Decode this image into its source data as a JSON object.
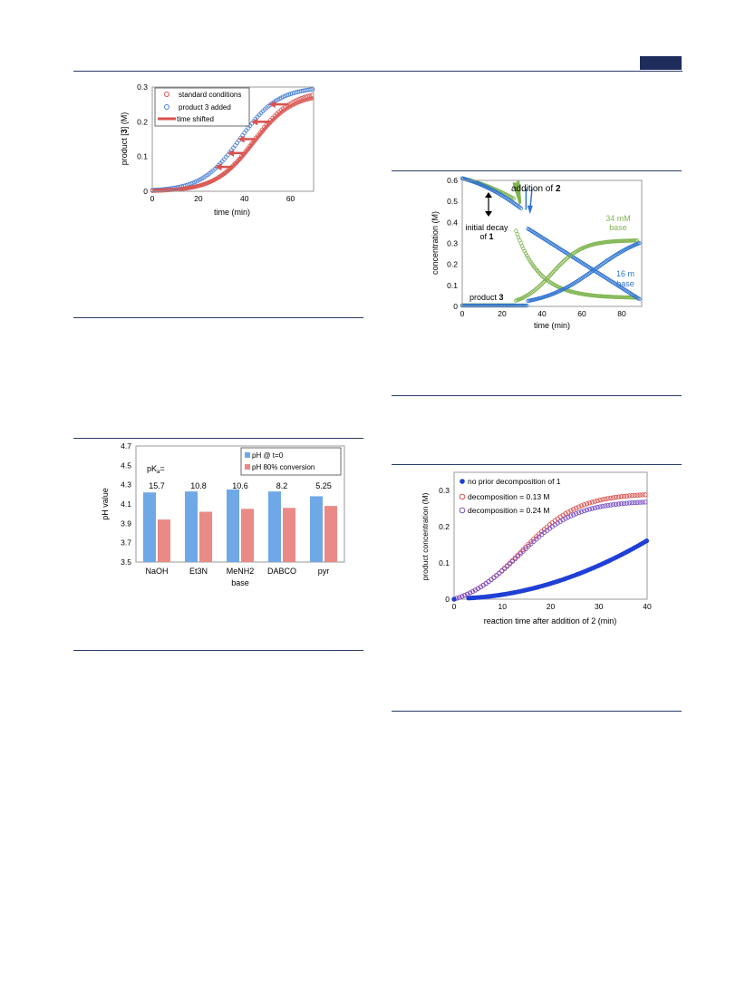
{
  "page": {
    "header_tab_color": "#1f2d5c",
    "rule_color": "#2b3a67"
  },
  "chart_data": [
    {
      "id": "fig_a",
      "type": "scatter",
      "xlabel": "time (min)",
      "ylabel_parts": [
        "product [",
        "3",
        "] (M)"
      ],
      "xlim": [
        0,
        70
      ],
      "ylim": [
        0,
        0.3
      ],
      "xticks": [
        0,
        20,
        40,
        60
      ],
      "yticks": [
        0,
        0.1,
        0.2,
        0.3
      ],
      "legend": [
        "standard conditions",
        "product 3 added",
        "time shifted"
      ],
      "legend_position": "top-left",
      "series": [
        {
          "name": "standard conditions",
          "color": "#d9534f",
          "marker": "open-circle",
          "sigmoid": {
            "max": 0.29,
            "mid": 44,
            "k": 0.12
          },
          "x_range": [
            0,
            70
          ]
        },
        {
          "name": "product 3 added",
          "color": "#4a7fd4",
          "marker": "open-circle",
          "sigmoid": {
            "max": 0.3,
            "mid": 38,
            "k": 0.12
          },
          "x_range": [
            0,
            70
          ]
        },
        {
          "name": "time shifted",
          "color": "#d9534f",
          "marker": "thick-line",
          "sigmoid": {
            "max": 0.28,
            "mid": 44,
            "k": 0.12
          },
          "x_range": [
            0,
            70
          ]
        }
      ],
      "arrows_y": [
        0.07,
        0.11,
        0.15,
        0.2,
        0.25
      ]
    },
    {
      "id": "fig_b",
      "type": "scatter",
      "xlabel": "time (min)",
      "ylabel": "concentration (M)",
      "xlim": [
        0,
        90
      ],
      "ylim": [
        0,
        0.6
      ],
      "xticks": [
        0,
        20,
        40,
        60,
        80
      ],
      "yticks": [
        0,
        0.1,
        0.2,
        0.3,
        0.4,
        0.5,
        0.6
      ],
      "annotations": {
        "addition": [
          "addition of ",
          "2"
        ],
        "initial_decay": [
          "initial decay",
          "of ",
          "1"
        ],
        "base34": [
          "34 mM",
          "base"
        ],
        "base16": [
          "16 m",
          "base"
        ],
        "product": [
          "product ",
          "3"
        ]
      },
      "colors": {
        "green": "#7fb550",
        "blue": "#2f74d0"
      }
    },
    {
      "id": "fig_c",
      "type": "bar",
      "ylabel": "pH value",
      "xlabel": "base",
      "categories": [
        "NaOH",
        "Et3N",
        "MeNH2",
        "DABCO",
        "pyr"
      ],
      "pka_label": "pKa=",
      "pka_values": [
        "15.7",
        "10.8",
        "10.6",
        "8.2",
        "5.25"
      ],
      "series": [
        {
          "name": "pH @ t=0",
          "color": "#6fa8e6",
          "values": [
            4.22,
            4.23,
            4.25,
            4.23,
            4.18
          ]
        },
        {
          "name": "pH 80% conversion",
          "color": "#e98a86",
          "values": [
            3.94,
            4.02,
            4.05,
            4.06,
            4.08
          ]
        }
      ],
      "ylim": [
        3.5,
        4.7
      ],
      "yticks": [
        "3.5",
        "3.7",
        "3.9",
        "4.1",
        "4.3",
        "4.5",
        "4.7"
      ],
      "legend_position": "top-right"
    },
    {
      "id": "fig_d",
      "type": "scatter",
      "xlabel": "reaction time after addition of 2  (min)",
      "ylabel": "product concentration (M)",
      "xlim": [
        0,
        40
      ],
      "ylim": [
        0,
        0.35
      ],
      "xticks": [
        0,
        10,
        20,
        30,
        40
      ],
      "yticks": [
        0,
        0.1,
        0.2,
        0.3
      ],
      "legend": [
        "no prior decomposition of 1",
        "decomposition = 0.13 M",
        "decomposition = 0.24 M"
      ],
      "legend_position": "top-left",
      "series": [
        {
          "name": "no prior decomposition of 1",
          "color": "#1f3fd6",
          "marker": "filled-circle"
        },
        {
          "name": "decomposition = 0.13 M",
          "color": "#d9534f",
          "marker": "open-circle"
        },
        {
          "name": "decomposition = 0.24 M",
          "color": "#7a4fc8",
          "marker": "open-circle"
        }
      ]
    }
  ]
}
